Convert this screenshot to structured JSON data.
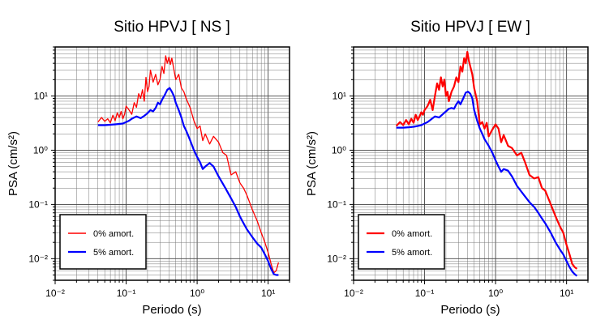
{
  "chart_data": [
    {
      "type": "line",
      "title": "Sitio HPVJ [ NS ]",
      "xlabel": "Periodo (s)",
      "ylabel": "PSA (cm/s²)",
      "xscale": "log",
      "yscale": "log",
      "xlim": [
        0.01,
        20
      ],
      "ylim": [
        0.004,
        80
      ],
      "x_ticks": [
        "10⁻²",
        "10⁻¹",
        "10⁰",
        "10¹"
      ],
      "y_ticks": [
        "10⁻²",
        "10⁻¹",
        "10⁰",
        "10¹"
      ],
      "grid": true,
      "legend": "bottom-left",
      "series": [
        {
          "name": "0% amort.",
          "color": "#ff0000",
          "x": [
            0.04,
            0.045,
            0.05,
            0.055,
            0.06,
            0.065,
            0.07,
            0.075,
            0.08,
            0.085,
            0.09,
            0.095,
            0.1,
            0.11,
            0.12,
            0.13,
            0.14,
            0.15,
            0.16,
            0.17,
            0.18,
            0.19,
            0.2,
            0.21,
            0.22,
            0.24,
            0.26,
            0.28,
            0.3,
            0.32,
            0.34,
            0.36,
            0.38,
            0.4,
            0.42,
            0.44,
            0.46,
            0.5,
            0.55,
            0.6,
            0.65,
            0.7,
            0.8,
            0.9,
            1.0,
            1.1,
            1.2,
            1.3,
            1.5,
            1.7,
            2.0,
            2.3,
            2.6,
            3.0,
            3.5,
            4.0,
            4.5,
            5.0,
            6.0,
            7.0,
            8.0,
            9.0,
            10.0,
            11.0,
            12.0,
            13.0,
            14.0
          ],
          "values": [
            3.3,
            4.0,
            3.4,
            3.8,
            3.2,
            4.4,
            3.5,
            4.9,
            4.0,
            5.2,
            3.8,
            4.6,
            6.5,
            5.5,
            4.6,
            7.5,
            6.2,
            11.0,
            9.0,
            13.0,
            8.0,
            22.0,
            12.0,
            15.0,
            30.0,
            18.0,
            25.0,
            16.0,
            20.0,
            35.0,
            26.0,
            55.0,
            40.0,
            52.0,
            38.0,
            50.0,
            36.0,
            20.0,
            25.0,
            14.0,
            12.0,
            9.0,
            6.0,
            3.5,
            2.5,
            2.8,
            1.5,
            2.0,
            1.3,
            1.8,
            1.4,
            0.9,
            0.8,
            0.35,
            0.4,
            0.25,
            0.2,
            0.15,
            0.08,
            0.05,
            0.03,
            0.02,
            0.013,
            0.008,
            0.0055,
            0.006,
            0.0085
          ]
        },
        {
          "name": "5% amort.",
          "color": "#0000ff",
          "x": [
            0.04,
            0.05,
            0.06,
            0.07,
            0.08,
            0.09,
            0.1,
            0.11,
            0.12,
            0.14,
            0.16,
            0.18,
            0.2,
            0.22,
            0.24,
            0.26,
            0.28,
            0.3,
            0.32,
            0.35,
            0.38,
            0.41,
            0.44,
            0.47,
            0.5,
            0.55,
            0.6,
            0.65,
            0.7,
            0.8,
            0.9,
            1.0,
            1.1,
            1.2,
            1.3,
            1.5,
            1.7,
            2.0,
            2.5,
            3.0,
            3.5,
            4.0,
            4.5,
            5.0,
            6.0,
            7.0,
            8.0,
            9.0,
            10.0,
            11.0,
            12.0,
            13.0,
            14.0
          ],
          "values": [
            2.9,
            2.9,
            2.95,
            3.0,
            3.05,
            3.1,
            3.3,
            3.5,
            3.8,
            4.2,
            3.9,
            4.3,
            4.8,
            5.5,
            5.2,
            6.0,
            7.5,
            7.0,
            8.5,
            10.5,
            13.0,
            14.0,
            12.0,
            10.0,
            7.5,
            5.5,
            4.0,
            2.8,
            2.3,
            1.5,
            1.0,
            0.75,
            0.6,
            0.45,
            0.5,
            0.58,
            0.5,
            0.33,
            0.2,
            0.13,
            0.09,
            0.06,
            0.045,
            0.035,
            0.025,
            0.019,
            0.016,
            0.012,
            0.009,
            0.0065,
            0.0052,
            0.005,
            0.005
          ]
        }
      ]
    },
    {
      "type": "line",
      "title": "Sitio HPVJ [ EW ]",
      "xlabel": "Periodo (s)",
      "ylabel": "PSA (cm/s²)",
      "xscale": "log",
      "yscale": "log",
      "xlim": [
        0.01,
        20
      ],
      "ylim": [
        0.004,
        80
      ],
      "x_ticks": [
        "10⁻²",
        "10⁻¹",
        "10⁰",
        "10¹"
      ],
      "y_ticks": [
        "10⁻²",
        "10⁻¹",
        "10⁰",
        "10¹"
      ],
      "grid": true,
      "legend": "bottom-left",
      "series": [
        {
          "name": "0% amort.",
          "color": "#ff0000",
          "x": [
            0.04,
            0.045,
            0.05,
            0.055,
            0.06,
            0.065,
            0.07,
            0.075,
            0.08,
            0.085,
            0.09,
            0.095,
            0.1,
            0.11,
            0.12,
            0.13,
            0.14,
            0.15,
            0.16,
            0.17,
            0.18,
            0.19,
            0.2,
            0.21,
            0.22,
            0.24,
            0.26,
            0.28,
            0.3,
            0.32,
            0.34,
            0.36,
            0.38,
            0.4,
            0.42,
            0.44,
            0.47,
            0.5,
            0.55,
            0.6,
            0.65,
            0.7,
            0.75,
            0.8,
            0.9,
            1.0,
            1.1,
            1.2,
            1.3,
            1.5,
            1.7,
            2.0,
            2.3,
            2.6,
            3.0,
            3.5,
            4.0,
            4.5,
            5.0,
            6.0,
            7.0,
            8.0,
            9.0,
            10.0,
            11.0,
            12.0,
            13.0,
            14.0
          ],
          "values": [
            2.8,
            3.3,
            2.9,
            3.6,
            3.0,
            3.8,
            3.2,
            4.5,
            3.6,
            4.2,
            5.0,
            4.5,
            5.5,
            6.5,
            8.5,
            5.5,
            10.0,
            17.0,
            13.0,
            22.0,
            15.0,
            20.0,
            10.0,
            12.0,
            8.0,
            12.0,
            15.0,
            22.0,
            18.0,
            35.0,
            28.0,
            50.0,
            40.0,
            65.0,
            45.0,
            35.0,
            25.0,
            14.0,
            8.0,
            3.0,
            3.3,
            2.5,
            3.2,
            1.8,
            2.4,
            3.0,
            2.5,
            1.4,
            1.9,
            1.2,
            1.1,
            0.8,
            0.9,
            0.6,
            0.35,
            0.3,
            0.32,
            0.2,
            0.18,
            0.1,
            0.06,
            0.04,
            0.03,
            0.018,
            0.012,
            0.008,
            0.007,
            0.0065
          ]
        },
        {
          "name": "5% amort.",
          "color": "#0000ff",
          "x": [
            0.04,
            0.05,
            0.06,
            0.07,
            0.08,
            0.09,
            0.1,
            0.11,
            0.12,
            0.14,
            0.16,
            0.18,
            0.2,
            0.22,
            0.24,
            0.26,
            0.28,
            0.3,
            0.32,
            0.35,
            0.38,
            0.41,
            0.44,
            0.47,
            0.5,
            0.55,
            0.6,
            0.65,
            0.7,
            0.8,
            0.9,
            1.0,
            1.1,
            1.2,
            1.3,
            1.5,
            1.7,
            2.0,
            2.5,
            3.0,
            3.5,
            4.0,
            4.5,
            5.0,
            6.0,
            7.0,
            8.0,
            9.0,
            10.0,
            11.0,
            12.0,
            13.0,
            14.0
          ],
          "values": [
            2.6,
            2.6,
            2.65,
            2.7,
            2.8,
            2.9,
            3.1,
            3.3,
            3.6,
            4.2,
            4.0,
            4.6,
            5.2,
            5.8,
            6.0,
            5.8,
            7.0,
            8.0,
            7.0,
            9.0,
            11.5,
            12.0,
            11.0,
            9.0,
            5.5,
            3.5,
            2.5,
            2.0,
            1.6,
            1.2,
            0.9,
            0.65,
            0.5,
            0.4,
            0.45,
            0.42,
            0.33,
            0.22,
            0.15,
            0.11,
            0.09,
            0.07,
            0.055,
            0.045,
            0.03,
            0.02,
            0.015,
            0.012,
            0.009,
            0.007,
            0.0058,
            0.0052,
            0.0048
          ]
        }
      ]
    }
  ]
}
